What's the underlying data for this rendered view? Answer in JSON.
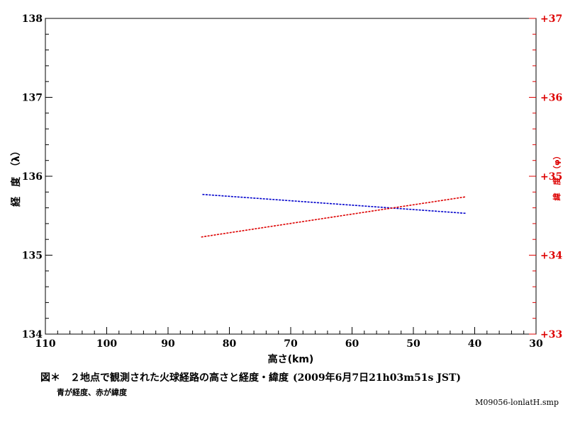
{
  "chart_data": {
    "type": "scatter",
    "xlabel": "高さ(km)",
    "ylabel_left": "経　度　（λ）",
    "ylabel_right": "緯　度　（φ）",
    "xlim": [
      110,
      30
    ],
    "ylim_left": [
      134,
      138
    ],
    "ylim_right": [
      33,
      37
    ],
    "x_ticks": [
      "110",
      "100",
      "90",
      "80",
      "70",
      "60",
      "50",
      "40",
      "30"
    ],
    "y_left_ticks": [
      "134",
      "135",
      "136",
      "137",
      "138"
    ],
    "y_right_ticks": [
      "+33",
      "+34",
      "+35",
      "+36",
      "+37"
    ],
    "grid": false,
    "series": [
      {
        "axis": "left",
        "color": "#0000cc",
        "x": [
          84.4,
          41.4
        ],
        "y": [
          135.77,
          135.53
        ]
      },
      {
        "axis": "right",
        "color": "#dd0000",
        "x": [
          84.6,
          41.4
        ],
        "y": [
          34.23,
          34.74
        ]
      }
    ]
  },
  "caption": {
    "main": "図＊　２地点で観測された火球経路の高さと経度・緯度",
    "date": "(2009年6月7日21h03m51s JST)",
    "sub": "青が経度、赤が緯度"
  },
  "filename": "M09056-lonlatH.smp"
}
